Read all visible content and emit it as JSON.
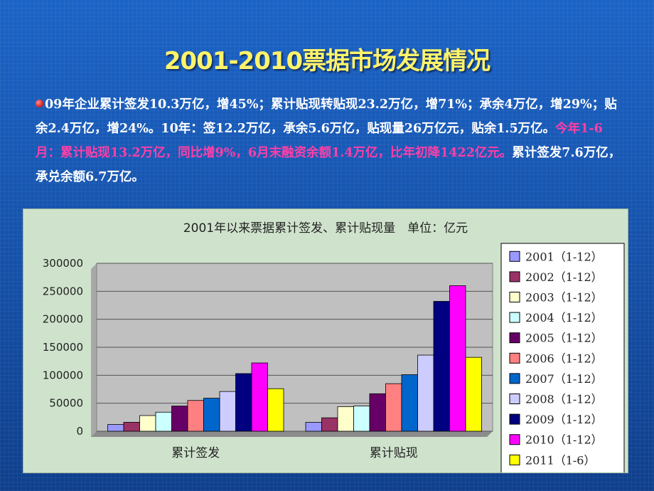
{
  "slide": {
    "title": "2001-2010票据市场发展情况",
    "para_white": "09年企业累计签发10.3万亿，增45%；累计贴现转贴现23.2万亿，增71%；承余4万亿，增29%；贴余2.4万亿，增24%。10年：签12.2万亿，承余5.6万亿，贴现量26万亿元，贴余1.5万亿。",
    "para_pink": "今年1-6月：累计贴现13.2万亿，同比增9%，6月末融资余额1.4万亿，比年初降1422亿元。",
    "para_white2": "累计签发7.6万亿，承兑余额6.7万亿。"
  },
  "chart_data": {
    "type": "bar",
    "title": "2001年以来票据累计签发、累计贴现量　单位：亿元",
    "categories": [
      "累计签发",
      "累计贴现"
    ],
    "ylim": [
      0,
      300000
    ],
    "yticks": [
      0,
      50000,
      100000,
      150000,
      200000,
      250000,
      300000
    ],
    "ytick_labels": [
      "0",
      "50000",
      "100000",
      "150000",
      "200000",
      "250000",
      "300000"
    ],
    "grid": true,
    "legend_position": "right",
    "series": [
      {
        "name": "2001（1-12）",
        "color": "#9999ff",
        "values": [
          12000,
          16000
        ]
      },
      {
        "name": "2002（1-12）",
        "color": "#993366",
        "values": [
          16000,
          24000
        ]
      },
      {
        "name": "2003（1-12）",
        "color": "#ffffcc",
        "values": [
          28000,
          44000
        ]
      },
      {
        "name": "2004（1-12）",
        "color": "#ccffff",
        "values": [
          34000,
          45000
        ]
      },
      {
        "name": "2005（1-12）",
        "color": "#660066",
        "values": [
          45000,
          67000
        ]
      },
      {
        "name": "2006（1-12）",
        "color": "#ff8080",
        "values": [
          55000,
          85000
        ]
      },
      {
        "name": "2007（1-12）",
        "color": "#0066cc",
        "values": [
          59000,
          101000
        ]
      },
      {
        "name": "2008（1-12）",
        "color": "#ccccff",
        "values": [
          71000,
          136000
        ]
      },
      {
        "name": "2009（1-12）",
        "color": "#000080",
        "values": [
          103000,
          232000
        ]
      },
      {
        "name": "2010（1-12）",
        "color": "#ff00ff",
        "values": [
          122000,
          260000
        ]
      },
      {
        "name": "2011（1-6）",
        "color": "#ffff00",
        "values": [
          76000,
          132000
        ]
      }
    ]
  }
}
